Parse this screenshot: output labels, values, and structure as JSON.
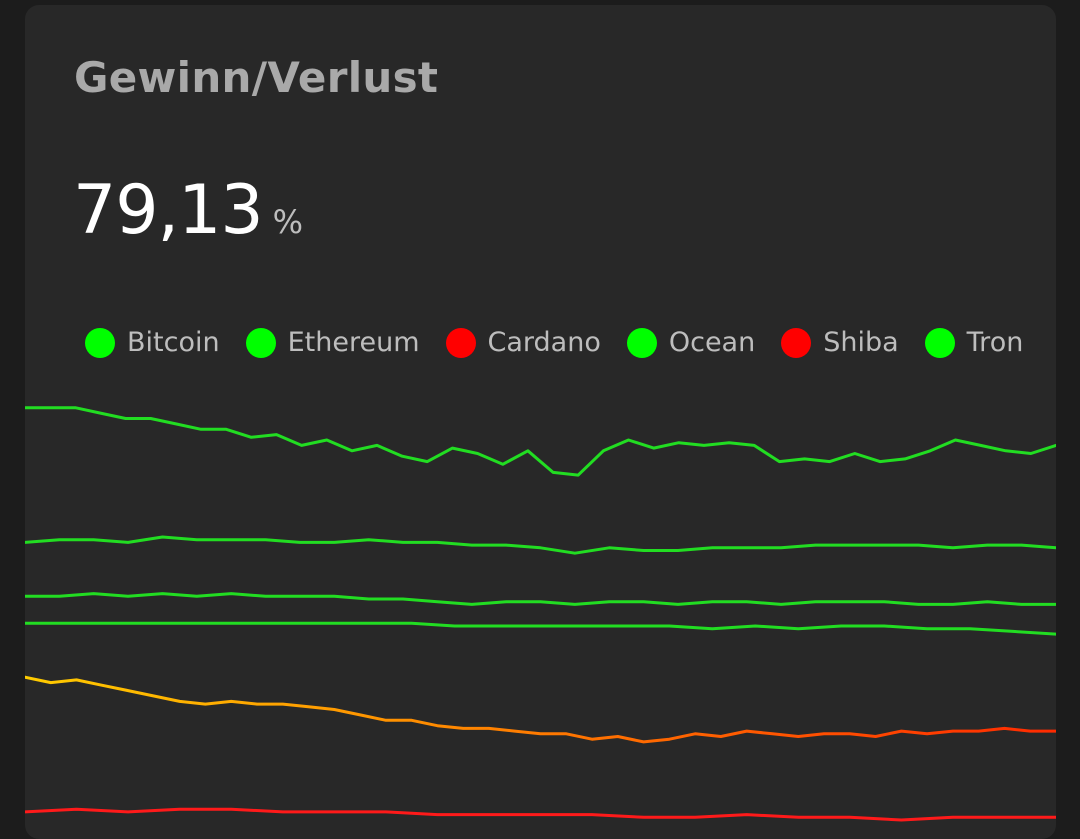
{
  "card": {
    "title": "Gewinn/Verlust",
    "value": "79,13",
    "unit": "%"
  },
  "colors": {
    "positive": "#00ff00",
    "negative": "#ff0000",
    "positive_line": "#22dd22",
    "card_background": "#282828",
    "page_background": "#1c1c1c"
  },
  "chart_data": {
    "type": "line",
    "title": "Gewinn/Verlust",
    "legend_position": "top",
    "grid": false,
    "axes_visible": false,
    "series": [
      {
        "name": "Bitcoin",
        "legend_color": "#00ff00",
        "line_colors": [
          "#22dd22"
        ],
        "values": [
          41,
          41,
          41,
          40.8,
          40.6,
          40.6,
          40.4,
          40.2,
          40.2,
          39.9,
          40.0,
          39.6,
          39.8,
          39.4,
          39.6,
          39.2,
          39.0,
          39.5,
          39.3,
          38.9,
          39.4,
          38.6,
          38.5,
          39.4,
          39.8,
          39.5,
          39.7,
          39.6,
          39.7,
          39.6,
          39.0,
          39.1,
          39.0,
          39.3,
          39.0,
          39.1,
          39.4,
          39.8,
          39.6,
          39.4,
          39.3,
          39.6
        ]
      },
      {
        "name": "Ethereum",
        "legend_color": "#00ff00",
        "line_colors": [
          "#22dd22"
        ],
        "values": [
          36,
          36.1,
          36.1,
          36.0,
          36.2,
          36.1,
          36.1,
          36.1,
          36.0,
          36.0,
          36.1,
          36.0,
          36.0,
          35.9,
          35.9,
          35.8,
          35.6,
          35.8,
          35.7,
          35.7,
          35.8,
          35.8,
          35.8,
          35.9,
          35.9,
          35.9,
          35.9,
          35.8,
          35.9,
          35.9,
          35.8
        ]
      },
      {
        "name": "Cardano",
        "legend_color": "#ff0000",
        "line_colors": [
          "#ffcc00",
          "#ff7a00",
          "#ff2a00"
        ],
        "values": [
          31,
          30.8,
          30.9,
          30.7,
          30.5,
          30.3,
          30.1,
          30.0,
          30.1,
          30.0,
          30.0,
          29.9,
          29.8,
          29.6,
          29.4,
          29.4,
          29.2,
          29.1,
          29.1,
          29.0,
          28.9,
          28.9,
          28.7,
          28.8,
          28.6,
          28.7,
          28.9,
          28.8,
          29.0,
          28.9,
          28.8,
          28.9,
          28.9,
          28.8,
          29.0,
          28.9,
          29.0,
          29.0,
          29.1,
          29.0,
          29.0
        ]
      },
      {
        "name": "Ocean",
        "legend_color": "#00ff00",
        "line_colors": [
          "#22dd22"
        ],
        "values": [
          34,
          34.0,
          34.1,
          34.0,
          34.1,
          34.0,
          34.1,
          34.0,
          34.0,
          34.0,
          33.9,
          33.9,
          33.8,
          33.7,
          33.8,
          33.8,
          33.7,
          33.8,
          33.8,
          33.7,
          33.8,
          33.8,
          33.7,
          33.8,
          33.8,
          33.8,
          33.7,
          33.7,
          33.8,
          33.7,
          33.7
        ]
      },
      {
        "name": "Shiba",
        "legend_color": "#ff0000",
        "line_colors": [
          "#ff1a1a"
        ],
        "values": [
          26,
          26.1,
          26.0,
          26.1,
          26.1,
          26.0,
          26.0,
          26.0,
          25.9,
          25.9,
          25.9,
          25.9,
          25.8,
          25.8,
          25.9,
          25.8,
          25.8,
          25.7,
          25.8,
          25.8,
          25.8
        ]
      },
      {
        "name": "Tron",
        "legend_color": "#00ff00",
        "line_colors": [
          "#22dd22"
        ],
        "values": [
          33,
          33.0,
          33.0,
          33.0,
          33.0,
          33.0,
          33.0,
          33.0,
          33.0,
          33.0,
          32.9,
          32.9,
          32.9,
          32.9,
          32.9,
          32.9,
          32.8,
          32.9,
          32.8,
          32.9,
          32.9,
          32.8,
          32.8,
          32.7,
          32.6
        ]
      }
    ]
  }
}
